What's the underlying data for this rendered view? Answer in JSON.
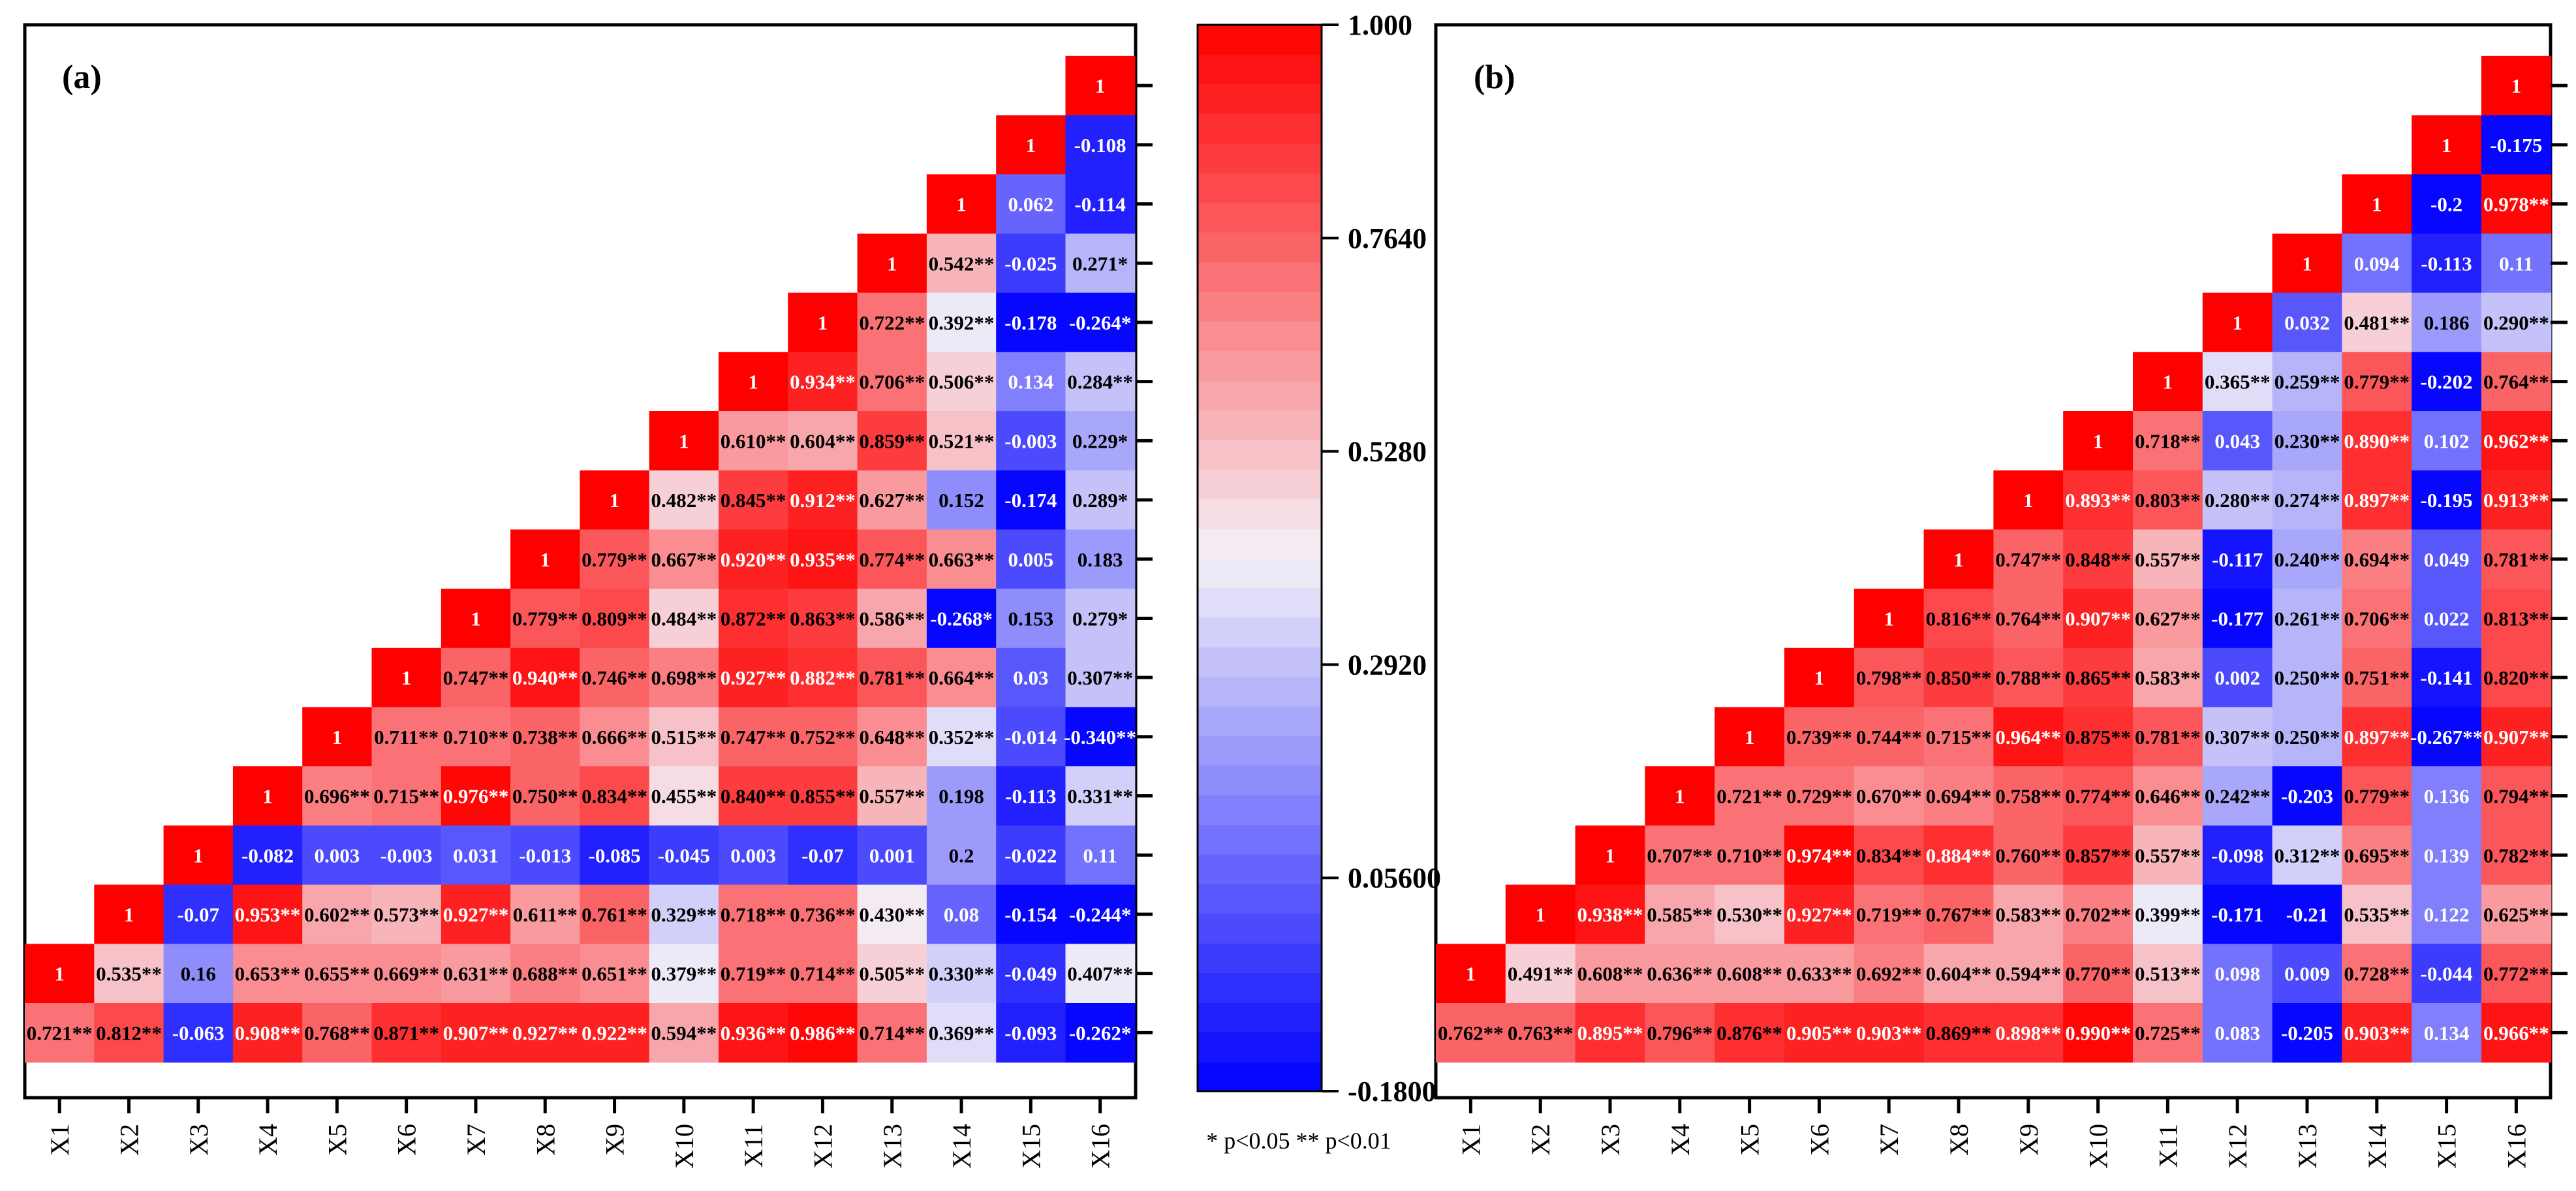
{
  "colorbar": {
    "ticks": [
      "1.000",
      "0.7640",
      "0.5280",
      "0.2920",
      "0.05600",
      "-0.1800"
    ],
    "min": -0.18,
    "max": 1.0,
    "steps": 36,
    "low_color": "#0000ff",
    "mid_color": "#f4f1f8",
    "high_color": "#ff0000"
  },
  "significance_note": "* p<0.05 ** p<0.01",
  "chart_data": [
    {
      "type": "heatmap",
      "panel_label": "(a)",
      "x_labels": [
        "X1",
        "X2",
        "X3",
        "X4",
        "X5",
        "X6",
        "X7",
        "X8",
        "X9",
        "X10",
        "X11",
        "X12",
        "X13",
        "X14",
        "X15",
        "X16"
      ],
      "rows": [
        [
          "",
          "",
          "",
          "",
          "",
          "",
          "",
          "",
          "",
          "",
          "",
          "",
          "",
          "",
          "",
          "1"
        ],
        [
          "",
          "",
          "",
          "",
          "",
          "",
          "",
          "",
          "",
          "",
          "",
          "",
          "",
          "",
          "1",
          "-0.108"
        ],
        [
          "",
          "",
          "",
          "",
          "",
          "",
          "",
          "",
          "",
          "",
          "",
          "",
          "",
          "1",
          "0.062",
          "-0.114"
        ],
        [
          "",
          "",
          "",
          "",
          "",
          "",
          "",
          "",
          "",
          "",
          "",
          "",
          "1",
          "0.542**",
          "-0.025",
          "0.271*"
        ],
        [
          "",
          "",
          "",
          "",
          "",
          "",
          "",
          "",
          "",
          "",
          "",
          "1",
          "0.722**",
          "0.392**",
          "-0.178",
          "-0.264*"
        ],
        [
          "",
          "",
          "",
          "",
          "",
          "",
          "",
          "",
          "",
          "",
          "1",
          "0.934**",
          "0.706**",
          "0.506**",
          "0.134",
          "0.284**"
        ],
        [
          "",
          "",
          "",
          "",
          "",
          "",
          "",
          "",
          "",
          "1",
          "0.610**",
          "0.604**",
          "0.859**",
          "0.521**",
          "-0.003",
          "0.229*"
        ],
        [
          "",
          "",
          "",
          "",
          "",
          "",
          "",
          "",
          "1",
          "0.482**",
          "0.845**",
          "0.912**",
          "0.627**",
          "0.152",
          "-0.174",
          "0.289*"
        ],
        [
          "",
          "",
          "",
          "",
          "",
          "",
          "",
          "1",
          "0.779**",
          "0.667**",
          "0.920**",
          "0.935**",
          "0.774**",
          "0.663**",
          "0.005",
          "0.183"
        ],
        [
          "",
          "",
          "",
          "",
          "",
          "",
          "1",
          "0.779**",
          "0.809**",
          "0.484**",
          "0.872**",
          "0.863**",
          "0.586**",
          "-0.268*",
          "0.153",
          "0.279*"
        ],
        [
          "",
          "",
          "",
          "",
          "",
          "1",
          "0.747**",
          "0.940**",
          "0.746**",
          "0.698**",
          "0.927**",
          "0.882**",
          "0.781**",
          "0.664**",
          "0.03",
          "0.307**"
        ],
        [
          "",
          "",
          "",
          "",
          "1",
          "0.711**",
          "0.710**",
          "0.738**",
          "0.666**",
          "0.515**",
          "0.747**",
          "0.752**",
          "0.648**",
          "0.352**",
          "-0.014",
          "-0.340**"
        ],
        [
          "",
          "",
          "",
          "1",
          "0.696**",
          "0.715**",
          "0.976**",
          "0.750**",
          "0.834**",
          "0.455**",
          "0.840**",
          "0.855**",
          "0.557**",
          "0.198",
          "-0.113",
          "0.331**"
        ],
        [
          "",
          "",
          "1",
          "-0.082",
          "0.003",
          "-0.003",
          "0.031",
          "-0.013",
          "-0.085",
          "-0.045",
          "0.003",
          "-0.07",
          "0.001",
          "0.2",
          "-0.022",
          "0.11"
        ],
        [
          "",
          "1",
          "-0.07",
          "0.953**",
          "0.602**",
          "0.573**",
          "0.927**",
          "0.611**",
          "0.761**",
          "0.329**",
          "0.718**",
          "0.736**",
          "0.430**",
          "0.08",
          "-0.154",
          "-0.244*"
        ],
        [
          "1",
          "0.535**",
          "0.16",
          "0.653**",
          "0.655**",
          "0.669**",
          "0.631**",
          "0.688**",
          "0.651**",
          "0.379**",
          "0.719**",
          "0.714**",
          "0.505**",
          "0.330**",
          "-0.049",
          "0.407**"
        ],
        [
          "0.721**",
          "0.812**",
          "-0.063",
          "0.908**",
          "0.768**",
          "0.871**",
          "0.907**",
          "0.927**",
          "0.922**",
          "0.594**",
          "0.936**",
          "0.986**",
          "0.714**",
          "0.369**",
          "-0.093",
          "-0.262*"
        ]
      ]
    },
    {
      "type": "heatmap",
      "panel_label": "(b)",
      "x_labels": [
        "X1",
        "X2",
        "X3",
        "X4",
        "X5",
        "X6",
        "X7",
        "X8",
        "X9",
        "X10",
        "X11",
        "X12",
        "X13",
        "X14",
        "X15",
        "X16"
      ],
      "rows": [
        [
          "",
          "",
          "",
          "",
          "",
          "",
          "",
          "",
          "",
          "",
          "",
          "",
          "",
          "",
          "",
          "1"
        ],
        [
          "",
          "",
          "",
          "",
          "",
          "",
          "",
          "",
          "",
          "",
          "",
          "",
          "",
          "",
          "1",
          "-0.175"
        ],
        [
          "",
          "",
          "",
          "",
          "",
          "",
          "",
          "",
          "",
          "",
          "",
          "",
          "",
          "1",
          "-0.2",
          "0.978**"
        ],
        [
          "",
          "",
          "",
          "",
          "",
          "",
          "",
          "",
          "",
          "",
          "",
          "",
          "1",
          "0.094",
          "-0.113",
          "0.11"
        ],
        [
          "",
          "",
          "",
          "",
          "",
          "",
          "",
          "",
          "",
          "",
          "",
          "1",
          "0.032",
          "0.481**",
          "0.186",
          "0.290**"
        ],
        [
          "",
          "",
          "",
          "",
          "",
          "",
          "",
          "",
          "",
          "",
          "1",
          "0.365**",
          "0.259**",
          "0.779**",
          "-0.202",
          "0.764**"
        ],
        [
          "",
          "",
          "",
          "",
          "",
          "",
          "",
          "",
          "",
          "1",
          "0.718**",
          "0.043",
          "0.230**",
          "0.890**",
          "0.102",
          "0.962**"
        ],
        [
          "",
          "",
          "",
          "",
          "",
          "",
          "",
          "",
          "1",
          "0.893**",
          "0.803**",
          "0.280**",
          "0.274**",
          "0.897**",
          "-0.195",
          "0.913**"
        ],
        [
          "",
          "",
          "",
          "",
          "",
          "",
          "",
          "1",
          "0.747**",
          "0.848**",
          "0.557**",
          "-0.117",
          "0.240**",
          "0.694**",
          "0.049",
          "0.781**"
        ],
        [
          "",
          "",
          "",
          "",
          "",
          "",
          "1",
          "0.816**",
          "0.764**",
          "0.907**",
          "0.627**",
          "-0.177",
          "0.261**",
          "0.706**",
          "0.022",
          "0.813**"
        ],
        [
          "",
          "",
          "",
          "",
          "",
          "1",
          "0.798**",
          "0.850**",
          "0.788**",
          "0.865**",
          "0.583**",
          "0.002",
          "0.250**",
          "0.751**",
          "-0.141",
          "0.820**"
        ],
        [
          "",
          "",
          "",
          "",
          "1",
          "0.739**",
          "0.744**",
          "0.715**",
          "0.964**",
          "0.875**",
          "0.781**",
          "0.307**",
          "0.250**",
          "0.897**",
          "-0.267**",
          "0.907**"
        ],
        [
          "",
          "",
          "",
          "1",
          "0.721**",
          "0.729**",
          "0.670**",
          "0.694**",
          "0.758**",
          "0.774**",
          "0.646**",
          "0.242**",
          "-0.203",
          "0.779**",
          "0.136",
          "0.794**"
        ],
        [
          "",
          "",
          "1",
          "0.707**",
          "0.710**",
          "0.974**",
          "0.834**",
          "0.884**",
          "0.760**",
          "0.857**",
          "0.557**",
          "-0.098",
          "0.312**",
          "0.695**",
          "0.139",
          "0.782**"
        ],
        [
          "",
          "1",
          "0.938**",
          "0.585**",
          "0.530**",
          "0.927**",
          "0.719**",
          "0.767**",
          "0.583**",
          "0.702**",
          "0.399**",
          "-0.171",
          "-0.21",
          "0.535**",
          "0.122",
          "0.625**"
        ],
        [
          "1",
          "0.491**",
          "0.608**",
          "0.636**",
          "0.608**",
          "0.633**",
          "0.692**",
          "0.604**",
          "0.594**",
          "0.770**",
          "0.513**",
          "0.098",
          "0.009",
          "0.728**",
          "-0.044",
          "0.772**"
        ],
        [
          "0.762**",
          "0.763**",
          "0.895**",
          "0.796**",
          "0.876**",
          "0.905**",
          "0.903**",
          "0.869**",
          "0.898**",
          "0.990**",
          "0.725**",
          "0.083",
          "-0.205",
          "0.903**",
          "0.134",
          "0.966**"
        ]
      ]
    }
  ]
}
